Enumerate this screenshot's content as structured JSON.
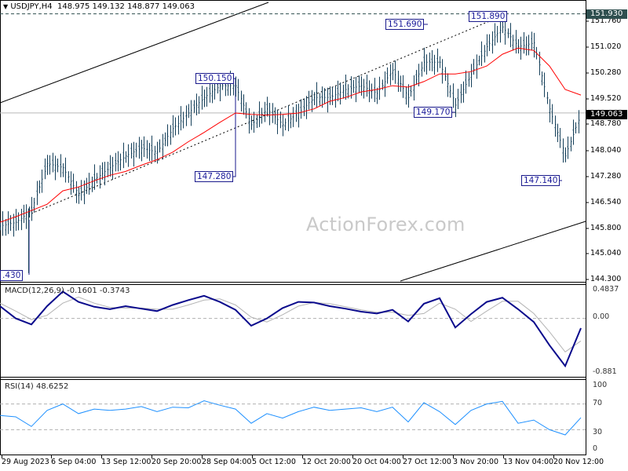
{
  "header": {
    "symbol_timeframe": "USDJPY,H4",
    "ohlc": "148.975 149.132 148.877 149.063",
    "menu_icon": "triangle-down-icon"
  },
  "watermark": "ActionForex.com",
  "price_axis": {
    "ticks": [
      "151.760",
      "151.020",
      "150.280",
      "149.520",
      "148.780",
      "148.040",
      "147.280",
      "146.540",
      "145.800",
      "145.040",
      "144.300"
    ],
    "high_tag": "151.930",
    "current_tag": "149.063"
  },
  "time_axis": {
    "ticks": [
      "29 Aug 2023",
      "6 Sep 04:00",
      "13 Sep 12:00",
      "20 Sep 20:00",
      "28 Sep 04:00",
      "5 Oct 12:00",
      "12 Oct 20:00",
      "20 Oct 04:00",
      "27 Oct 12:00",
      "3 Nov 20:00",
      "13 Nov 04:00",
      "20 Nov 12:00"
    ]
  },
  "annotations": [
    {
      "text": "150.150"
    },
    {
      "text": "147.280"
    },
    {
      "text": "151.690"
    },
    {
      "text": "151.890"
    },
    {
      "text": "149.170"
    },
    {
      "text": "147.140"
    },
    {
      "text": ".430"
    }
  ],
  "macd": {
    "title": "MACD(12,26,9) -0.1601 -0.3743",
    "ticks": [
      "0.4837",
      "0.00",
      "-0.881"
    ]
  },
  "rsi": {
    "title": "RSI(14) 48.6252",
    "ticks": [
      "100",
      "70",
      "30",
      "0"
    ]
  },
  "colors": {
    "bars": "#16405a",
    "ma": "#ff0000",
    "macd": "#0a0a8c",
    "signal": "#b4b4b4",
    "rsi": "#1e90ff",
    "annotation": "#1a1a9a",
    "high_tag_bg": "#2f4f4f",
    "current_tag_bg": "#000000"
  },
  "chart_data": [
    {
      "type": "line",
      "title": "USDJPY,H4",
      "ylim": [
        144.2,
        152.33
      ],
      "grid": false,
      "series": [
        {
          "kind": "ohlc-close",
          "values": [
            145.79,
            145.9,
            146.24,
            147.6,
            147.48,
            146.69,
            147.14,
            147.48,
            147.82,
            148.05,
            147.93,
            148.61,
            149.06,
            149.51,
            149.85,
            149.85,
            148.72,
            149.18,
            148.72,
            149.06,
            149.51,
            149.51,
            149.74,
            149.85,
            149.63,
            150.3,
            149.51,
            150.53,
            150.53,
            149.29,
            150.19,
            150.98,
            151.55,
            150.98,
            151.09,
            149.18,
            147.82,
            149.06
          ]
        },
        {
          "kind": "moving-average",
          "values": [
            145.9,
            146.06,
            146.24,
            146.42,
            146.81,
            146.92,
            147.1,
            147.26,
            147.37,
            147.55,
            147.71,
            147.93,
            148.23,
            148.5,
            148.79,
            149.06,
            149.02,
            149.0,
            149.02,
            149.06,
            149.18,
            149.4,
            149.51,
            149.67,
            149.74,
            149.85,
            149.81,
            149.97,
            150.19,
            150.19,
            150.26,
            150.42,
            150.76,
            150.94,
            150.87,
            150.42,
            149.74,
            149.58
          ]
        }
      ],
      "levels": [
        151.93,
        149.063
      ]
    },
    {
      "type": "line",
      "title": "MACD(12,26,9)",
      "ylim": [
        -0.958,
        0.561
      ],
      "series": [
        {
          "kind": "macd",
          "values": [
            0.2,
            0.0,
            -0.1,
            0.2,
            0.44,
            0.27,
            0.19,
            0.15,
            0.2,
            0.16,
            0.12,
            0.22,
            0.3,
            0.37,
            0.27,
            0.14,
            -0.12,
            0.0,
            0.17,
            0.27,
            0.26,
            0.2,
            0.16,
            0.11,
            0.08,
            0.14,
            -0.05,
            0.24,
            0.33,
            -0.15,
            0.07,
            0.27,
            0.34,
            0.15,
            -0.06,
            -0.44,
            -0.78,
            -0.16
          ]
        },
        {
          "kind": "signal",
          "values": [
            0.25,
            0.12,
            -0.02,
            0.05,
            0.25,
            0.35,
            0.25,
            0.18,
            0.17,
            0.17,
            0.15,
            0.15,
            0.22,
            0.3,
            0.32,
            0.22,
            0.02,
            -0.06,
            0.06,
            0.2,
            0.26,
            0.24,
            0.19,
            0.14,
            0.1,
            0.1,
            0.05,
            0.08,
            0.25,
            0.15,
            -0.05,
            0.12,
            0.28,
            0.28,
            0.08,
            -0.22,
            -0.55,
            -0.37
          ]
        }
      ],
      "levels": [
        0
      ]
    },
    {
      "type": "line",
      "title": "RSI(14)",
      "ylim": [
        -6.1,
        108.5
      ],
      "series": [
        {
          "kind": "rsi",
          "values": [
            52,
            50,
            35,
            60,
            70,
            55,
            62,
            60,
            62,
            66,
            58,
            65,
            64,
            75,
            68,
            62,
            40,
            55,
            48,
            58,
            65,
            60,
            62,
            64,
            58,
            65,
            42,
            72,
            58,
            38,
            60,
            70,
            74,
            40,
            45,
            30,
            22,
            48.6
          ]
        }
      ],
      "levels": [
        70,
        30
      ]
    }
  ]
}
